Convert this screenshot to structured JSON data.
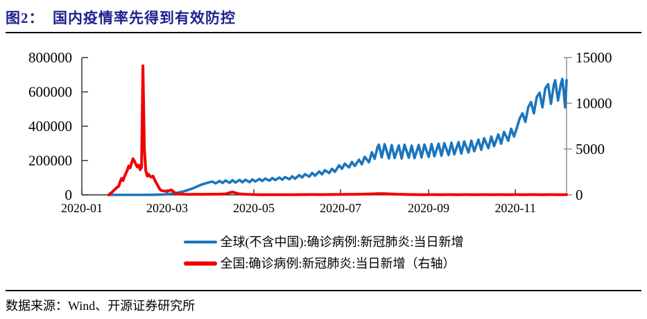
{
  "header": {
    "title": "图2：  国内疫情率先得到有效防控"
  },
  "footer": {
    "source": "数据来源：Wind、开源证券研究所"
  },
  "chart_data": {
    "type": "line",
    "title": "国内疫情率先得到有效防控",
    "legend_position": "bottom",
    "grid": false,
    "x_axis": {
      "unit": "month",
      "tick_labels": [
        "2020-01",
        "2020-03",
        "2020-05",
        "2020-07",
        "2020-09",
        "2020-11"
      ],
      "tick_days": [
        0,
        60,
        121,
        182,
        244,
        305
      ],
      "range_days": [
        0,
        341
      ]
    },
    "y_left": {
      "tick_labels": [
        "0",
        "200000",
        "400000",
        "600000",
        "800000"
      ],
      "ticks": [
        0,
        200000,
        400000,
        600000,
        800000
      ],
      "range": [
        0,
        800000
      ]
    },
    "y_right": {
      "tick_labels": [
        "0",
        "5000",
        "10000",
        "15000"
      ],
      "ticks": [
        0,
        5000,
        10000,
        15000
      ],
      "range": [
        0,
        15000
      ]
    },
    "series": [
      {
        "name": "全球(不含中国):确诊病例:新冠肺炎:当日新增",
        "axis": "left",
        "color": "#1b75bc",
        "stroke_width": 3.6,
        "points": [
          [
            19,
            0
          ],
          [
            40,
            0
          ],
          [
            48,
            500
          ],
          [
            52,
            1000
          ],
          [
            55,
            1600
          ],
          [
            58,
            2600
          ],
          [
            61,
            4500
          ],
          [
            64,
            8000
          ],
          [
            67,
            12000
          ],
          [
            70,
            17000
          ],
          [
            73,
            24000
          ],
          [
            76,
            32000
          ],
          [
            79,
            41000
          ],
          [
            82,
            52000
          ],
          [
            85,
            62000
          ],
          [
            88,
            69000
          ],
          [
            90,
            74000
          ],
          [
            92,
            77000
          ],
          [
            94,
            67000
          ],
          [
            97,
            81000
          ],
          [
            99,
            69000
          ],
          [
            101,
            84000
          ],
          [
            104,
            70000
          ],
          [
            106,
            86000
          ],
          [
            108,
            72000
          ],
          [
            111,
            87000
          ],
          [
            113,
            73000
          ],
          [
            115,
            88000
          ],
          [
            118,
            74000
          ],
          [
            120,
            90000
          ],
          [
            122,
            78000
          ],
          [
            125,
            93000
          ],
          [
            127,
            81000
          ],
          [
            129,
            95000
          ],
          [
            132,
            83000
          ],
          [
            134,
            98000
          ],
          [
            136,
            86000
          ],
          [
            139,
            101000
          ],
          [
            141,
            88000
          ],
          [
            143,
            104000
          ],
          [
            146,
            91000
          ],
          [
            148,
            108000
          ],
          [
            150,
            94000
          ],
          [
            153,
            115000
          ],
          [
            155,
            101000
          ],
          [
            157,
            121000
          ],
          [
            160,
            106000
          ],
          [
            162,
            128000
          ],
          [
            164,
            112000
          ],
          [
            167,
            136000
          ],
          [
            169,
            119000
          ],
          [
            171,
            144000
          ],
          [
            174,
            127000
          ],
          [
            176,
            152000
          ],
          [
            178,
            134000
          ],
          [
            181,
            172000
          ],
          [
            183,
            152000
          ],
          [
            185,
            182000
          ],
          [
            188,
            160000
          ],
          [
            190,
            192000
          ],
          [
            192,
            168000
          ],
          [
            195,
            205000
          ],
          [
            197,
            178000
          ],
          [
            199,
            222000
          ],
          [
            202,
            190000
          ],
          [
            204,
            248000
          ],
          [
            206,
            210000
          ],
          [
            208,
            278000
          ],
          [
            209,
            292000
          ],
          [
            211,
            218000
          ],
          [
            213,
            295000
          ],
          [
            216,
            212000
          ],
          [
            218,
            290000
          ],
          [
            220,
            215000
          ],
          [
            223,
            288000
          ],
          [
            225,
            212000
          ],
          [
            227,
            292000
          ],
          [
            230,
            216000
          ],
          [
            232,
            287000
          ],
          [
            234,
            214000
          ],
          [
            237,
            290000
          ],
          [
            239,
            218000
          ],
          [
            241,
            293000
          ],
          [
            244,
            221000
          ],
          [
            246,
            296000
          ],
          [
            248,
            225000
          ],
          [
            251,
            298000
          ],
          [
            253,
            228000
          ],
          [
            255,
            301000
          ],
          [
            258,
            232000
          ],
          [
            260,
            304000
          ],
          [
            262,
            236000
          ],
          [
            265,
            307000
          ],
          [
            267,
            241000
          ],
          [
            269,
            311000
          ],
          [
            272,
            247000
          ],
          [
            274,
            316000
          ],
          [
            276,
            254000
          ],
          [
            279,
            322000
          ],
          [
            281,
            262000
          ],
          [
            283,
            330000
          ],
          [
            286,
            272000
          ],
          [
            288,
            340000
          ],
          [
            290,
            284000
          ],
          [
            293,
            352000
          ],
          [
            295,
            298000
          ],
          [
            297,
            367000
          ],
          [
            300,
            315000
          ],
          [
            302,
            385000
          ],
          [
            304,
            340000
          ],
          [
            306,
            390000
          ],
          [
            308,
            445000
          ],
          [
            310,
            475000
          ],
          [
            312,
            425000
          ],
          [
            314,
            510000
          ],
          [
            316,
            540000
          ],
          [
            318,
            475000
          ],
          [
            320,
            570000
          ],
          [
            322,
            595000
          ],
          [
            324,
            510000
          ],
          [
            326,
            620000
          ],
          [
            328,
            645000
          ],
          [
            330,
            530000
          ],
          [
            332,
            640000
          ],
          [
            333,
            668000
          ],
          [
            335,
            550000
          ],
          [
            336,
            600000
          ],
          [
            337,
            645000
          ],
          [
            338,
            675000
          ],
          [
            339,
            600000
          ],
          [
            340,
            510000
          ],
          [
            341,
            668000
          ]
        ]
      },
      {
        "name": "全国:确诊病例:新冠肺炎:当日新增（右轴）",
        "axis": "right",
        "color": "#f00000",
        "stroke_width": 4,
        "points": [
          [
            19,
            0
          ],
          [
            20,
            150
          ],
          [
            21,
            250
          ],
          [
            22,
            400
          ],
          [
            23,
            550
          ],
          [
            24,
            700
          ],
          [
            25,
            850
          ],
          [
            26,
            950
          ],
          [
            27,
            1450
          ],
          [
            28,
            1800
          ],
          [
            29,
            1550
          ],
          [
            30,
            2000
          ],
          [
            31,
            2350
          ],
          [
            32,
            2700
          ],
          [
            33,
            3150
          ],
          [
            34,
            2950
          ],
          [
            35,
            3450
          ],
          [
            36,
            3950
          ],
          [
            37,
            3700
          ],
          [
            38,
            3350
          ],
          [
            39,
            3050
          ],
          [
            40,
            3250
          ],
          [
            41,
            2750
          ],
          [
            42,
            3000
          ],
          [
            43,
            14100
          ],
          [
            44,
            5000
          ],
          [
            45,
            2650
          ],
          [
            46,
            2050
          ],
          [
            47,
            2250
          ],
          [
            48,
            2000
          ],
          [
            49,
            1950
          ],
          [
            50,
            2050
          ],
          [
            51,
            1750
          ],
          [
            52,
            1400
          ],
          [
            53,
            1150
          ],
          [
            54,
            850
          ],
          [
            55,
            600
          ],
          [
            56,
            480
          ],
          [
            57,
            440
          ],
          [
            58,
            420
          ],
          [
            60,
            390
          ],
          [
            61,
            440
          ],
          [
            62,
            500
          ],
          [
            63,
            540
          ],
          [
            64,
            420
          ],
          [
            65,
            280
          ],
          [
            66,
            180
          ],
          [
            67,
            120
          ],
          [
            69,
            90
          ],
          [
            72,
            70
          ],
          [
            76,
            60
          ],
          [
            80,
            70
          ],
          [
            85,
            55
          ],
          [
            90,
            65
          ],
          [
            95,
            75
          ],
          [
            100,
            90
          ],
          [
            102,
            130
          ],
          [
            104,
            240
          ],
          [
            106,
            300
          ],
          [
            108,
            220
          ],
          [
            110,
            120
          ],
          [
            113,
            80
          ],
          [
            116,
            55
          ],
          [
            120,
            35
          ],
          [
            125,
            25
          ],
          [
            130,
            20
          ],
          [
            136,
            25
          ],
          [
            142,
            20
          ],
          [
            148,
            25
          ],
          [
            155,
            30
          ],
          [
            162,
            35
          ],
          [
            168,
            30
          ],
          [
            175,
            35
          ],
          [
            182,
            45
          ],
          [
            188,
            55
          ],
          [
            194,
            70
          ],
          [
            199,
            85
          ],
          [
            204,
            105
          ],
          [
            208,
            125
          ],
          [
            212,
            135
          ],
          [
            215,
            115
          ],
          [
            218,
            95
          ],
          [
            222,
            70
          ],
          [
            226,
            50
          ],
          [
            230,
            35
          ],
          [
            235,
            28
          ],
          [
            240,
            25
          ],
          [
            246,
            28
          ],
          [
            252,
            24
          ],
          [
            258,
            28
          ],
          [
            264,
            24
          ],
          [
            270,
            28
          ],
          [
            276,
            24
          ],
          [
            282,
            28
          ],
          [
            288,
            24
          ],
          [
            294,
            28
          ],
          [
            300,
            24
          ],
          [
            306,
            28
          ],
          [
            312,
            24
          ],
          [
            318,
            28
          ],
          [
            324,
            24
          ],
          [
            330,
            28
          ],
          [
            336,
            24
          ],
          [
            341,
            25
          ]
        ]
      }
    ]
  }
}
